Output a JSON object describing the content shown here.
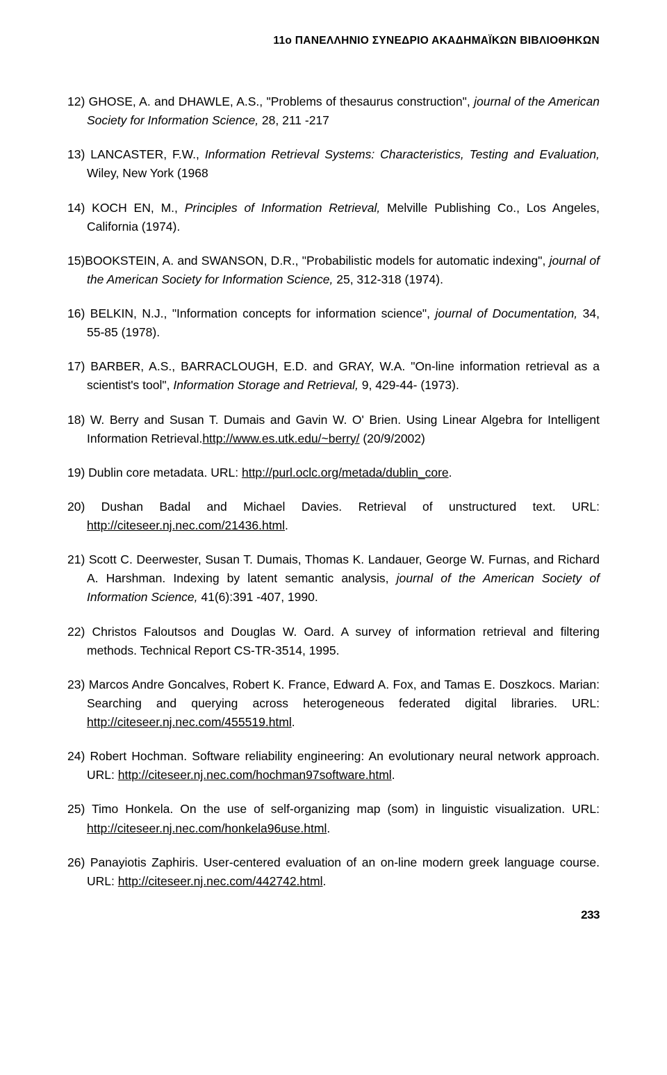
{
  "header": {
    "title": "11ο ΠΑΝΕΛΛΗΝΙΟ ΣΥΝΕΔΡΙΟ ΑΚΑΔΗΜΑΪΚΩΝ ΒΙΒΛΙΟΘΗΚΩΝ"
  },
  "refs": {
    "r12": {
      "plain1": "12) GHOSE, A. and DHAWLE, A.S., \"Problems of thesaurus construction\", ",
      "italic1": "journal of the American Society for Information Science,",
      "plain2": " 28, 211 -217"
    },
    "r13": {
      "plain1": "13) LANCASTER, F.W., ",
      "italic1": "Information Retrieval Systems: Characteristics, Testing and Evaluation,",
      "plain2": " Wiley, New York (1968"
    },
    "r14": {
      "plain1": "14) KOCH EN, M., ",
      "italic1": "Principles of Information Retrieval,",
      "plain2": " Melville Publishing Co., Los Angeles, California (1974)."
    },
    "r15": {
      "plain1": "15)BOOKSTEIN, A. and SWANSON, D.R., \"Probabilistic models for automatic indexing\", ",
      "italic1": "journal of the American Society for Information Science,",
      "plain2": " 25, 312-318 (1974)."
    },
    "r16": {
      "plain1": "16) BELKIN, N.J., \"Information concepts for information science\", ",
      "italic1": "journal of Documentation,",
      "plain2": " 34, 55-85 (1978)."
    },
    "r17": {
      "plain1": "17) BARBER, A.S., BARRACLOUGH, E.D. and GRAY, W.A. \"On-line information retrieval as a scientist's tool\", ",
      "italic1": "Information Storage and Retrieval,",
      "plain2": " 9, 429-44- (1973)."
    },
    "r18": {
      "plain1": "18) W. Berry and Susan T. Dumais and Gavin W. O' Brien. Using Linear Algebra for Intelligent Information Retrieval.",
      "url1": "http://www.es.utk.edu/~berry/",
      "plain2": " (20/9/2002)"
    },
    "r19": {
      "plain1": "19) Dublin core metadata. URL: ",
      "url1": "http://purl.oclc.org/metada/dublin_core",
      "plain2": "."
    },
    "r20": {
      "plain1": "20) Dushan Badal and Michael Davies. Retrieval of unstructured text. URL: ",
      "url1": "http://citeseer.nj.nec.com/21436.html",
      "plain2": "."
    },
    "r21": {
      "plain1": "21) Scott C. Deerwester, Susan T. Dumais, Thomas K. Landauer, George W. Furnas, and Richard A. Harshman. Indexing by latent semantic analysis, ",
      "italic1": "journal of the American Society of Information Science,",
      "plain2": " 41(6):391 -407, 1990."
    },
    "r22": {
      "plain1": "22) Christos Faloutsos and Douglas W. Oard. A survey of information retrieval and filtering methods. Technical Report CS-TR-3514, 1995."
    },
    "r23": {
      "plain1": "23) Marcos Andre Goncalves, Robert K. France, Edward A. Fox, and Tamas E. Doszkocs. Marian: Searching and querying across heterogeneous federated digital libraries. URL: ",
      "url1": "http://citeseer.nj.nec.com/455519.html",
      "plain2": "."
    },
    "r24": {
      "plain1": "24) Robert Hochman. Software reliability engineering: An evolutionary neural network approach. URL: ",
      "url1": "http://citeseer.nj.nec.com/hochman97software.html",
      "plain2": "."
    },
    "r25": {
      "plain1": "25) Timo Honkela. On the use of self-organizing map (som) in linguistic visualization. URL: ",
      "url1": "http://citeseer.nj.nec.com/honkela96use.html",
      "plain2": "."
    },
    "r26": {
      "plain1": "26) Panayiotis Zaphiris. User-centered evaluation of an on-line modern greek language course. URL: ",
      "url1": "http://citeseer.nj.nec.com/442742.html",
      "plain2": "."
    }
  },
  "pagenum": "233"
}
